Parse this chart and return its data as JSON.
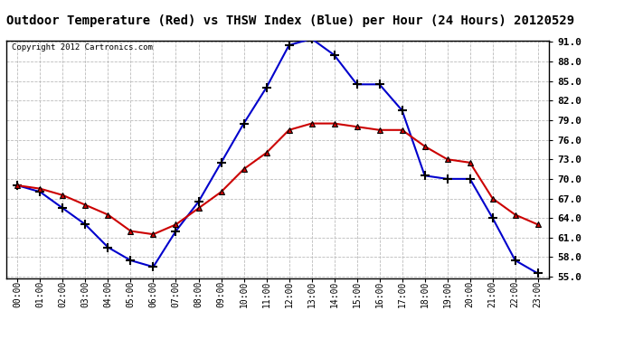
{
  "title": "Outdoor Temperature (Red) vs THSW Index (Blue) per Hour (24 Hours) 20120529",
  "copyright": "Copyright 2012 Cartronics.com",
  "hours": [
    0,
    1,
    2,
    3,
    4,
    5,
    6,
    7,
    8,
    9,
    10,
    11,
    12,
    13,
    14,
    15,
    16,
    17,
    18,
    19,
    20,
    21,
    22,
    23
  ],
  "red_temp": [
    69.0,
    68.5,
    67.5,
    66.0,
    64.5,
    62.0,
    61.5,
    63.0,
    65.5,
    68.0,
    71.5,
    74.0,
    77.5,
    78.5,
    78.5,
    78.0,
    77.5,
    77.5,
    75.0,
    73.0,
    72.5,
    67.0,
    64.5,
    63.0
  ],
  "blue_thsw": [
    69.0,
    68.0,
    65.5,
    63.0,
    59.5,
    57.5,
    56.5,
    62.0,
    66.5,
    72.5,
    78.5,
    84.0,
    90.5,
    91.5,
    89.0,
    84.5,
    84.5,
    80.5,
    70.5,
    70.0,
    70.0,
    64.0,
    57.5,
    55.5
  ],
  "ylim_min": 55.0,
  "ylim_max": 91.0,
  "yticks": [
    55.0,
    58.0,
    61.0,
    64.0,
    67.0,
    70.0,
    73.0,
    76.0,
    79.0,
    82.0,
    85.0,
    88.0,
    91.0
  ],
  "red_color": "#cc0000",
  "blue_color": "#0000cc",
  "bg_color": "#ffffff",
  "plot_bg_color": "#ffffff",
  "grid_color": "#bbbbbb",
  "title_bg_color": "#ffffff",
  "title_text_color": "#000000"
}
